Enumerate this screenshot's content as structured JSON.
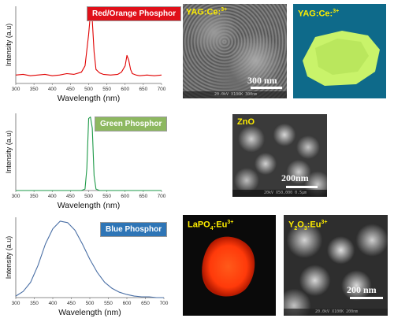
{
  "charts": {
    "red": {
      "badge": "Red/Orange Phosphor",
      "badge_color": "#e0101a",
      "line_color": "#e00000",
      "ylabel": "Intensity (a.u)",
      "xlabel": "Wavelength (nm)",
      "xticks": [
        "300",
        "350",
        "400",
        "450",
        "500",
        "550",
        "600",
        "650",
        "700"
      ]
    },
    "green": {
      "badge": "Green Phosphor",
      "badge_color": "#8db860",
      "line_color": "#1e9a48",
      "ylabel": "Intensity (a.u)",
      "xlabel": "Wavelength (nm)",
      "xticks": [
        "300",
        "350",
        "400",
        "450",
        "500",
        "550",
        "600",
        "650",
        "700"
      ]
    },
    "blue": {
      "badge": "Blue Phosphor",
      "badge_color": "#2e75b6",
      "line_color": "#4a6fa5",
      "ylabel": "Intensity (a.u)",
      "xlabel": "Wavelength (nm)",
      "xticks": [
        "300",
        "350",
        "400",
        "450",
        "500",
        "550",
        "600",
        "650",
        "700"
      ]
    }
  },
  "images": {
    "yag_sem": {
      "label": "YAG:Ce:",
      "label_sup": "3+",
      "scale": "300 nm",
      "info": "20.0kV  X100K  300nm"
    },
    "yag_powder": {
      "label": "YAG:Ce:",
      "label_sup": "3+"
    },
    "zno": {
      "label": "ZnO",
      "scale": "200nm",
      "info": "20kV  X50,000  0.5μm"
    },
    "lapo4": {
      "label": "LaPO",
      "label_sub": "4",
      "label_tail": ":Eu",
      "label_sup": "3+"
    },
    "y2o3": {
      "label_a": "Y",
      "label_sub1": "2",
      "label_b": "O",
      "label_sub2": "3",
      "label_c": ":Eu",
      "label_sup": "3+",
      "scale": "200 nm",
      "info": "20.0kV  X100K  200nm"
    }
  },
  "chart_data": [
    {
      "type": "line",
      "name": "red",
      "x": [
        300,
        320,
        340,
        360,
        380,
        400,
        420,
        440,
        460,
        480,
        490,
        500,
        505,
        510,
        515,
        520,
        530,
        540,
        560,
        580,
        590,
        600,
        605,
        610,
        615,
        620,
        630,
        640,
        660,
        680,
        700
      ],
      "y": [
        0.12,
        0.13,
        0.11,
        0.12,
        0.13,
        0.11,
        0.12,
        0.14,
        0.13,
        0.16,
        0.25,
        0.7,
        1.0,
        0.9,
        0.45,
        0.2,
        0.15,
        0.13,
        0.12,
        0.13,
        0.16,
        0.25,
        0.4,
        0.33,
        0.2,
        0.14,
        0.12,
        0.11,
        0.12,
        0.11,
        0.12
      ],
      "xlim": [
        300,
        700
      ],
      "ylim": [
        0,
        1.1
      ],
      "xlabel": "Wavelength (nm)",
      "ylabel": "Intensity (a.u)"
    },
    {
      "type": "line",
      "name": "green",
      "x": [
        300,
        400,
        480,
        490,
        495,
        500,
        505,
        510,
        515,
        520,
        530,
        600,
        700
      ],
      "y": [
        0,
        0,
        0,
        0.02,
        0.3,
        0.98,
        1.0,
        0.85,
        0.2,
        0.02,
        0,
        0,
        0
      ],
      "xlim": [
        300,
        700
      ],
      "ylim": [
        0,
        1.05
      ],
      "xlabel": "Wavelength (nm)",
      "ylabel": "Intensity (a.u)"
    },
    {
      "type": "line",
      "name": "blue",
      "x": [
        300,
        320,
        340,
        360,
        380,
        400,
        420,
        440,
        460,
        480,
        500,
        520,
        540,
        560,
        580,
        600,
        620,
        640,
        660,
        680,
        700
      ],
      "y": [
        0.02,
        0.08,
        0.2,
        0.42,
        0.7,
        0.9,
        1.0,
        0.98,
        0.88,
        0.7,
        0.5,
        0.33,
        0.2,
        0.12,
        0.07,
        0.04,
        0.02,
        0.01,
        0.01,
        0.0,
        0.0
      ],
      "xlim": [
        300,
        700
      ],
      "ylim": [
        0,
        1.05
      ],
      "xlabel": "Wavelength (nm)",
      "ylabel": "Intensity (a.u)"
    }
  ]
}
